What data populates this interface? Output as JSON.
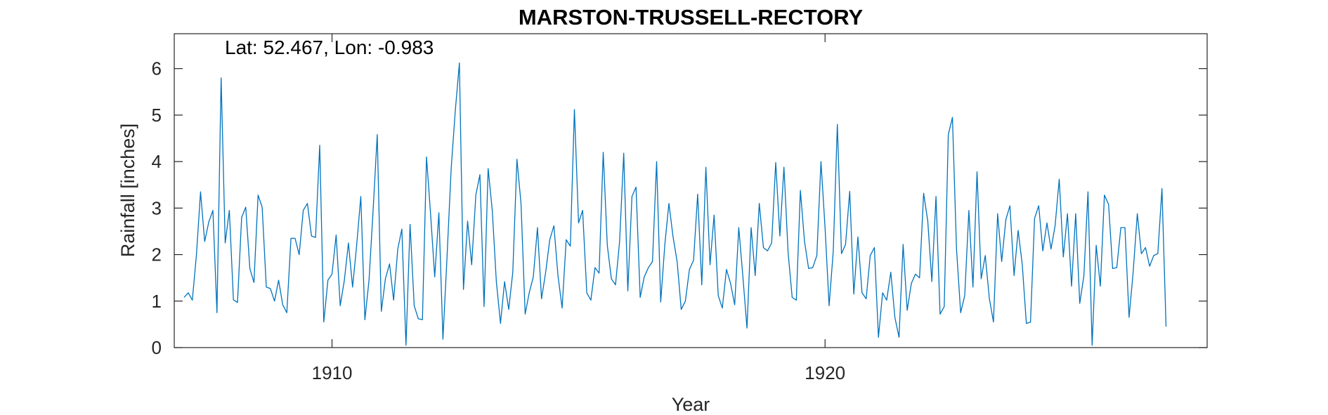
{
  "chart_data": {
    "type": "line",
    "title": "MARSTON-TRUSSELL-RECTORY",
    "annotation": "Lat: 52.467, Lon: -0.983",
    "xlabel": "Year",
    "ylabel": "Rainfall [inches]",
    "xlim": [
      1906.8,
      1927.75
    ],
    "ylim": [
      0,
      6.75
    ],
    "x_ticks": [
      1910,
      1920
    ],
    "x_tick_labels": [
      "1910",
      "1920"
    ],
    "y_ticks": [
      0,
      1,
      2,
      3,
      4,
      5,
      6
    ],
    "y_tick_labels": [
      "0",
      "1",
      "2",
      "3",
      "4",
      "5",
      "6"
    ],
    "grid": false,
    "line_color": "#0072BD",
    "x_start": 1907.0,
    "x_step": 0.083333,
    "series": [
      {
        "name": "",
        "values": [
          1.08,
          1.18,
          1.02,
          2.0,
          3.35,
          2.28,
          2.7,
          2.95,
          0.75,
          5.8,
          2.25,
          2.95,
          1.03,
          0.97,
          2.8,
          3.02,
          1.7,
          1.4,
          3.28,
          3.02,
          1.3,
          1.27,
          1.0,
          1.45,
          0.92,
          0.75,
          2.35,
          2.35,
          2.0,
          2.95,
          3.1,
          2.4,
          2.37,
          4.35,
          0.55,
          1.45,
          1.58,
          2.42,
          0.9,
          1.45,
          2.25,
          1.3,
          2.2,
          3.25,
          0.6,
          1.45,
          2.95,
          4.58,
          0.78,
          1.48,
          1.8,
          1.02,
          2.12,
          2.55,
          0.05,
          2.65,
          0.9,
          0.62,
          0.6,
          4.1,
          2.85,
          1.52,
          2.9,
          0.18,
          1.98,
          3.85,
          5.1,
          6.12,
          1.25,
          2.72,
          1.78,
          3.28,
          3.72,
          0.88,
          3.85,
          2.95,
          1.42,
          0.52,
          1.42,
          0.82,
          1.62,
          4.05,
          3.1,
          0.72,
          1.18,
          1.52,
          2.58,
          1.05,
          1.62,
          2.32,
          2.62,
          1.55,
          0.85,
          2.32,
          2.18,
          5.12,
          2.68,
          2.95,
          1.18,
          1.02,
          1.72,
          1.6,
          4.2,
          2.2,
          1.48,
          1.35,
          2.28,
          4.18,
          1.22,
          3.25,
          3.45,
          1.08,
          1.52,
          1.72,
          1.85,
          4.0,
          0.98,
          2.22,
          3.1,
          2.38,
          1.85,
          0.82,
          1.0,
          1.68,
          1.88,
          3.3,
          1.35,
          3.88,
          1.78,
          2.85,
          1.12,
          0.85,
          1.68,
          1.38,
          0.92,
          2.58,
          1.52,
          0.42,
          2.58,
          1.55,
          3.1,
          2.15,
          2.08,
          2.25,
          3.98,
          2.4,
          3.88,
          2.05,
          1.08,
          1.02,
          3.38,
          2.28,
          1.7,
          1.72,
          1.98,
          4.0,
          2.58,
          0.9,
          2.08,
          4.8,
          2.02,
          2.22,
          3.36,
          1.15,
          2.38,
          1.18,
          1.05,
          1.98,
          2.15,
          0.22,
          1.18,
          1.02,
          1.62,
          0.65,
          0.22,
          2.22,
          0.8,
          1.38,
          1.58,
          1.5,
          3.32,
          2.72,
          1.42,
          3.25,
          0.72,
          0.88,
          4.58,
          4.95,
          2.12,
          0.75,
          1.12,
          2.95,
          1.3,
          3.78,
          1.48,
          1.98,
          1.05,
          0.55,
          2.88,
          1.85,
          2.75,
          3.05,
          1.55,
          2.52,
          1.78,
          0.52,
          0.55,
          2.78,
          3.05,
          2.08,
          2.68,
          2.12,
          2.62,
          3.62,
          1.95,
          2.88,
          1.32,
          2.88,
          0.95,
          1.55,
          3.35,
          0.05,
          2.2,
          1.32,
          3.28,
          3.08,
          1.7,
          1.72,
          2.58,
          2.58,
          0.65,
          1.62,
          2.88,
          2.02,
          2.15,
          1.75,
          1.98,
          2.02,
          3.42,
          0.45
        ]
      }
    ]
  }
}
